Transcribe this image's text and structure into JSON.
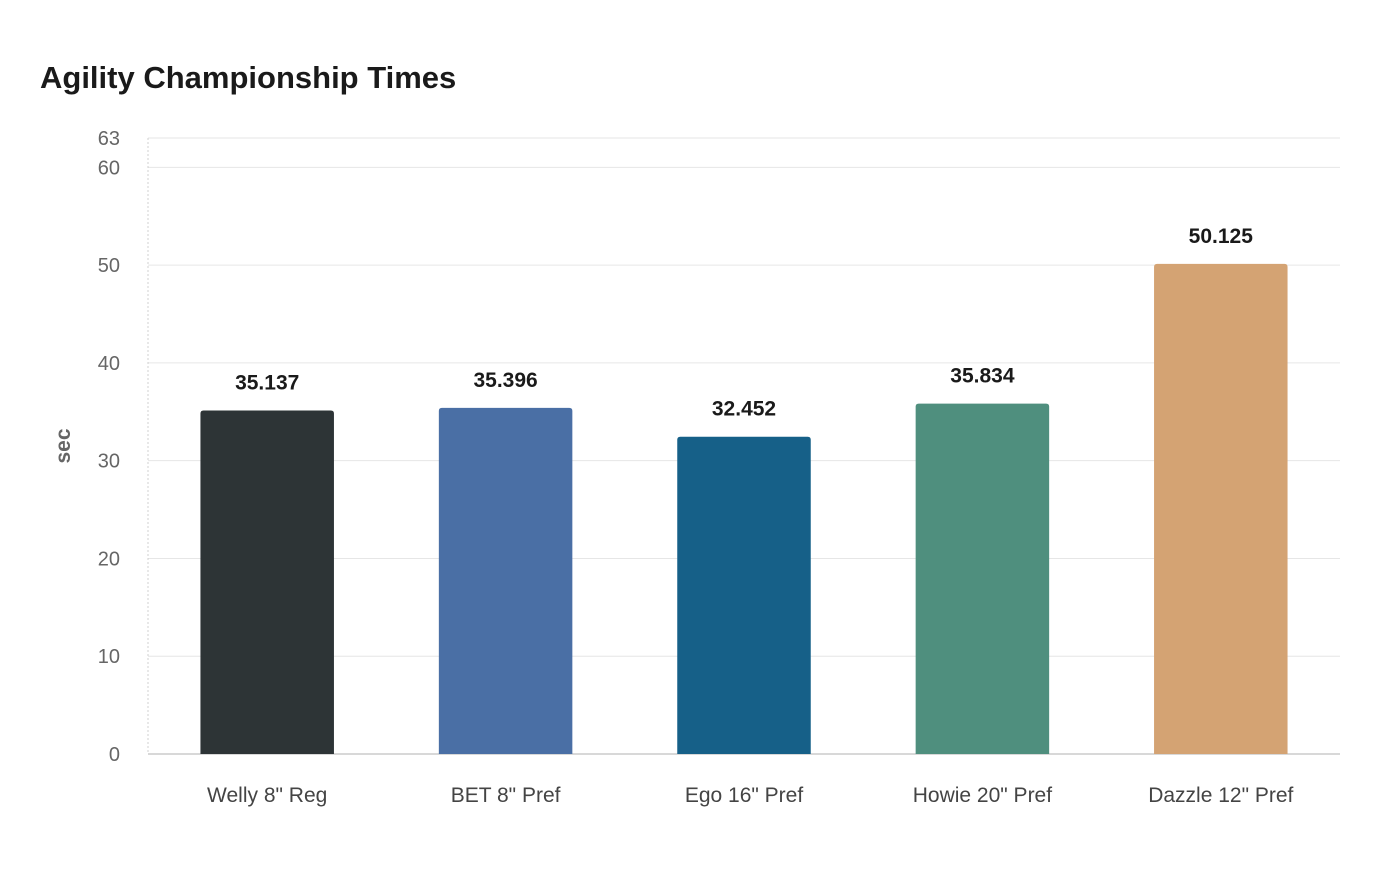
{
  "chart_data": {
    "type": "bar",
    "title": "Agility Championship Times",
    "ylabel": "sec",
    "xlabel": "",
    "categories": [
      "Welly 8\" Reg",
      "BET 8\" Pref",
      "Ego 16\" Pref",
      "Howie 20\" Pref",
      "Dazzle 12\" Pref"
    ],
    "values": [
      35.137,
      35.396,
      32.452,
      35.834,
      50.125
    ],
    "value_labels": [
      "35.137",
      "35.396",
      "32.452",
      "35.834",
      "50.125"
    ],
    "colors": [
      "#2d3436",
      "#4a6fa5",
      "#166088",
      "#4f8f7e",
      "#d4a373"
    ],
    "ylim": [
      0,
      63
    ],
    "yticks": [
      0,
      10,
      20,
      30,
      40,
      50,
      60,
      63
    ],
    "grid": true,
    "legend": "none"
  }
}
